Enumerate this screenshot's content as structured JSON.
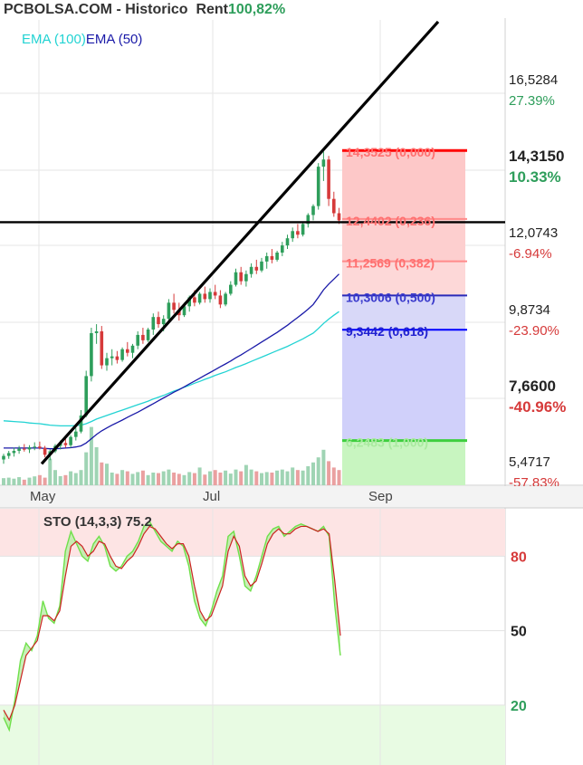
{
  "header": {
    "site": "PCBOLSA.COM",
    "separator": " - ",
    "section": "Historico",
    "rent_label": "Rent",
    "rent_value": "100,82%"
  },
  "legend": {
    "ema_long": "EMA (100)",
    "ema_short": "EMA (50)"
  },
  "colors": {
    "up_candle": "#2e9e5b",
    "down_candle": "#d63a3a",
    "ema_long": "#22d3d3",
    "ema_short": "#1a1aa8",
    "trend_line": "#000000",
    "fib_red": "#ff0000",
    "fib_blue": "#0000ff",
    "fib_green": "#3ecf3e",
    "sto_k": "#6fe04a",
    "sto_d": "#cc2222",
    "overbought_fill": "#fde4e4",
    "oversold_fill": "#e8fbe3"
  },
  "chart_data": [
    {
      "type": "candlestick",
      "title": "",
      "x_tick_labels": [
        "May",
        "Jul",
        "Sep"
      ],
      "ylim": [
        5.0,
        18.0
      ],
      "ohlc": [
        [
          5.72,
          5.88,
          5.6,
          5.82
        ],
        [
          5.82,
          5.96,
          5.74,
          5.9
        ],
        [
          5.9,
          6.05,
          5.8,
          5.96
        ],
        [
          5.96,
          6.1,
          5.88,
          6.02
        ],
        [
          6.02,
          6.15,
          5.94,
          6.0
        ],
        [
          6.0,
          6.12,
          5.9,
          6.06
        ],
        [
          6.06,
          6.2,
          5.98,
          6.08
        ],
        [
          6.08,
          6.22,
          6.0,
          6.04
        ],
        [
          6.04,
          6.1,
          5.78,
          5.85
        ],
        [
          5.85,
          6.0,
          5.7,
          5.95
        ],
        [
          5.95,
          6.15,
          5.9,
          6.1
        ],
        [
          6.1,
          6.25,
          6.0,
          6.18
        ],
        [
          6.18,
          6.3,
          6.05,
          6.12
        ],
        [
          6.12,
          6.4,
          6.05,
          6.35
        ],
        [
          6.35,
          6.6,
          6.25,
          6.5
        ],
        [
          6.5,
          7.1,
          6.45,
          6.95
        ],
        [
          6.95,
          8.2,
          6.9,
          8.05
        ],
        [
          8.05,
          9.4,
          7.9,
          9.25
        ],
        [
          9.25,
          9.5,
          8.95,
          9.3
        ],
        [
          9.3,
          9.45,
          8.25,
          8.35
        ],
        [
          8.35,
          8.7,
          8.2,
          8.55
        ],
        [
          8.55,
          8.8,
          8.35,
          8.6
        ],
        [
          8.6,
          8.75,
          8.4,
          8.5
        ],
        [
          8.5,
          8.85,
          8.45,
          8.8
        ],
        [
          8.8,
          9.0,
          8.6,
          8.7
        ],
        [
          8.7,
          8.95,
          8.55,
          8.9
        ],
        [
          8.9,
          9.3,
          8.8,
          9.2
        ],
        [
          9.2,
          9.4,
          8.95,
          9.05
        ],
        [
          9.05,
          9.4,
          9.0,
          9.35
        ],
        [
          9.35,
          9.8,
          9.2,
          9.7
        ],
        [
          9.7,
          9.85,
          9.4,
          9.5
        ],
        [
          9.5,
          9.75,
          9.3,
          9.65
        ],
        [
          9.65,
          10.2,
          9.6,
          10.1
        ],
        [
          10.1,
          10.35,
          9.8,
          9.9
        ],
        [
          9.9,
          10.1,
          9.6,
          9.75
        ],
        [
          9.75,
          10.1,
          9.7,
          10.0
        ],
        [
          10.0,
          10.3,
          9.85,
          10.25
        ],
        [
          10.25,
          10.45,
          10.0,
          10.1
        ],
        [
          10.1,
          10.4,
          10.05,
          10.35
        ],
        [
          10.35,
          10.55,
          10.1,
          10.2
        ],
        [
          10.2,
          10.5,
          10.1,
          10.4
        ],
        [
          10.4,
          10.6,
          10.2,
          10.3
        ],
        [
          10.3,
          10.45,
          9.95,
          10.05
        ],
        [
          10.05,
          10.4,
          10.0,
          10.35
        ],
        [
          10.35,
          10.7,
          10.3,
          10.6
        ],
        [
          10.6,
          11.05,
          10.55,
          10.95
        ],
        [
          10.95,
          11.1,
          10.6,
          10.7
        ],
        [
          10.7,
          11.0,
          10.55,
          10.9
        ],
        [
          10.9,
          11.2,
          10.8,
          11.1
        ],
        [
          11.1,
          11.3,
          10.9,
          11.0
        ],
        [
          11.0,
          11.35,
          10.95,
          11.25
        ],
        [
          11.25,
          11.5,
          11.05,
          11.4
        ],
        [
          11.4,
          11.6,
          11.2,
          11.3
        ],
        [
          11.3,
          11.55,
          11.25,
          11.5
        ],
        [
          11.5,
          11.8,
          11.4,
          11.7
        ],
        [
          11.7,
          12.0,
          11.6,
          11.9
        ],
        [
          11.9,
          12.2,
          11.8,
          12.1
        ],
        [
          12.1,
          12.3,
          11.9,
          12.0
        ],
        [
          12.0,
          12.35,
          11.95,
          12.3
        ],
        [
          12.3,
          12.6,
          12.2,
          12.55
        ],
        [
          12.55,
          12.85,
          12.4,
          12.8
        ],
        [
          12.8,
          14.0,
          12.7,
          13.9
        ],
        [
          13.9,
          14.32,
          13.5,
          14.1
        ],
        [
          14.1,
          14.2,
          12.8,
          13.0
        ],
        [
          13.0,
          13.2,
          12.5,
          12.6
        ],
        [
          12.6,
          12.75,
          12.3,
          12.4
        ]
      ],
      "volume": [
        0.28,
        0.3,
        0.26,
        0.32,
        0.22,
        0.3,
        0.35,
        0.4,
        0.3,
        1.05,
        0.6,
        0.36,
        0.4,
        0.55,
        0.48,
        0.6,
        1.3,
        2.3,
        1.5,
        0.9,
        0.85,
        0.5,
        0.45,
        0.6,
        0.55,
        0.45,
        0.52,
        0.58,
        0.4,
        0.5,
        0.48,
        0.55,
        0.62,
        0.5,
        0.45,
        0.4,
        0.52,
        0.48,
        0.7,
        0.42,
        0.55,
        0.6,
        0.5,
        0.58,
        0.46,
        0.62,
        0.55,
        0.8,
        0.62,
        0.55,
        0.48,
        0.52,
        0.5,
        0.58,
        0.62,
        0.55,
        0.7,
        0.6,
        0.58,
        0.75,
        0.9,
        1.1,
        1.4,
        0.95,
        0.7,
        0.6
      ],
      "ema_100": [
        6.8,
        6.79,
        6.78,
        6.77,
        6.76,
        6.74,
        6.73,
        6.72,
        6.7,
        6.68,
        6.67,
        6.66,
        6.66,
        6.66,
        6.67,
        6.68,
        6.72,
        6.78,
        6.85,
        6.9,
        6.95,
        7.0,
        7.05,
        7.1,
        7.15,
        7.2,
        7.25,
        7.3,
        7.35,
        7.41,
        7.46,
        7.51,
        7.57,
        7.63,
        7.68,
        7.74,
        7.79,
        7.85,
        7.9,
        7.96,
        8.01,
        8.07,
        8.12,
        8.17,
        8.23,
        8.29,
        8.34,
        8.4,
        8.46,
        8.52,
        8.58,
        8.64,
        8.7,
        8.76,
        8.82,
        8.88,
        8.95,
        9.02,
        9.09,
        9.17,
        9.25,
        9.38,
        9.52,
        9.64,
        9.75,
        9.85
      ],
      "ema_50": [
        6.04,
        6.04,
        6.04,
        6.04,
        6.04,
        6.04,
        6.04,
        6.04,
        6.03,
        6.02,
        6.02,
        6.03,
        6.04,
        6.05,
        6.07,
        6.1,
        6.18,
        6.3,
        6.42,
        6.52,
        6.6,
        6.68,
        6.75,
        6.82,
        6.9,
        6.97,
        7.04,
        7.12,
        7.2,
        7.28,
        7.36,
        7.44,
        7.52,
        7.6,
        7.67,
        7.75,
        7.83,
        7.91,
        7.99,
        8.07,
        8.15,
        8.23,
        8.31,
        8.39,
        8.47,
        8.56,
        8.64,
        8.73,
        8.82,
        8.91,
        9.0,
        9.09,
        9.18,
        9.27,
        9.37,
        9.47,
        9.58,
        9.69,
        9.8,
        9.92,
        10.05,
        10.25,
        10.46,
        10.62,
        10.76,
        10.9
      ],
      "trend_line": [
        [
          5.6,
          17.95
        ]
      ],
      "support_line": 12.35,
      "fibonacci": [
        {
          "price": 14.3525,
          "label": "14,3525 (0,000)"
        },
        {
          "price": 12.4402,
          "label": "12,4402 (0,236)"
        },
        {
          "price": 11.2569,
          "label": "11,2569 (0,382)"
        },
        {
          "price": 10.3006,
          "label": "10,3006 (0,500)"
        },
        {
          "price": 9.3442,
          "label": "9,3442 (0,618)"
        },
        {
          "price": 6.2483,
          "label": "6,2483 (1,000)"
        }
      ],
      "price_levels": [
        {
          "price": "16,5284",
          "pct": "27.39%",
          "pct_color": "#2e9e5b",
          "bold": false
        },
        {
          "price": "14,3150",
          "pct": "10.33%",
          "pct_color": "#2e9e5b",
          "bold": true
        },
        {
          "price": "12,0743",
          "pct": "-6.94%",
          "pct_color": "#d63a3a",
          "bold": false
        },
        {
          "price": "9,8734",
          "pct": "-23.90%",
          "pct_color": "#d63a3a",
          "bold": false
        },
        {
          "price": "7,6600",
          "pct": "-40.96%",
          "pct_color": "#d63a3a",
          "bold": true
        },
        {
          "price": "5,4717",
          "pct": "-57.83%",
          "pct_color": "#d63a3a",
          "bold": false
        }
      ]
    },
    {
      "type": "line",
      "title": "STO (14,3,3) 75.2",
      "ylim": [
        5,
        98
      ],
      "y_tick_labels": [
        "80",
        "50",
        "20"
      ],
      "y_ticks": [
        80,
        50,
        20
      ],
      "overbought": 80,
      "oversold": 20,
      "k": [
        15,
        10,
        22,
        38,
        45,
        42,
        48,
        62,
        55,
        53,
        60,
        82,
        90,
        85,
        80,
        78,
        85,
        88,
        84,
        76,
        74,
        76,
        80,
        82,
        86,
        92,
        94,
        90,
        86,
        84,
        82,
        86,
        84,
        76,
        62,
        55,
        52,
        58,
        66,
        72,
        88,
        90,
        80,
        68,
        66,
        72,
        80,
        88,
        91,
        92,
        88,
        90,
        92,
        93,
        92,
        91,
        90,
        92,
        88,
        60,
        40
      ],
      "d": [
        18,
        14,
        20,
        30,
        40,
        43,
        46,
        56,
        56,
        54,
        58,
        72,
        84,
        86,
        84,
        80,
        82,
        86,
        85,
        80,
        76,
        75,
        78,
        80,
        84,
        89,
        92,
        91,
        88,
        85,
        83,
        85,
        85,
        80,
        68,
        58,
        54,
        56,
        62,
        68,
        82,
        88,
        84,
        72,
        68,
        70,
        77,
        85,
        89,
        91,
        89,
        89,
        91,
        92,
        92,
        91,
        90,
        91,
        89,
        70,
        48
      ]
    }
  ]
}
